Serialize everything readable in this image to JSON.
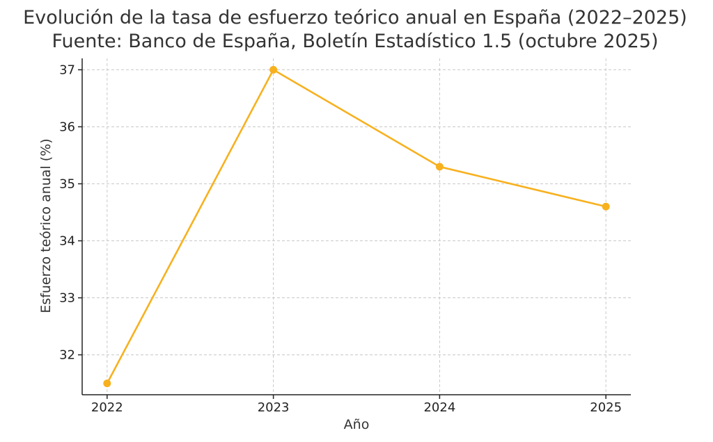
{
  "chart_data": {
    "type": "line",
    "title": "Evolución de la tasa de esfuerzo teórico anual en España (2022–2025)",
    "subtitle": "Fuente: Banco de España, Boletín Estadístico 1.5 (octubre 2025)",
    "xlabel": "Año",
    "ylabel": "Esfuerzo teórico anual (%)",
    "categories": [
      "2022",
      "2023",
      "2024",
      "2025"
    ],
    "x": [
      2022,
      2023,
      2024,
      2025
    ],
    "y_ticks": [
      "32",
      "33",
      "34",
      "35",
      "36",
      "37"
    ],
    "ylim": [
      31.3,
      37.2
    ],
    "xlim": [
      2021.85,
      2025.15
    ],
    "grid": true,
    "series": [
      {
        "values": [
          31.5,
          37.0,
          35.3,
          34.6
        ],
        "color": "#f7b11f"
      }
    ]
  }
}
